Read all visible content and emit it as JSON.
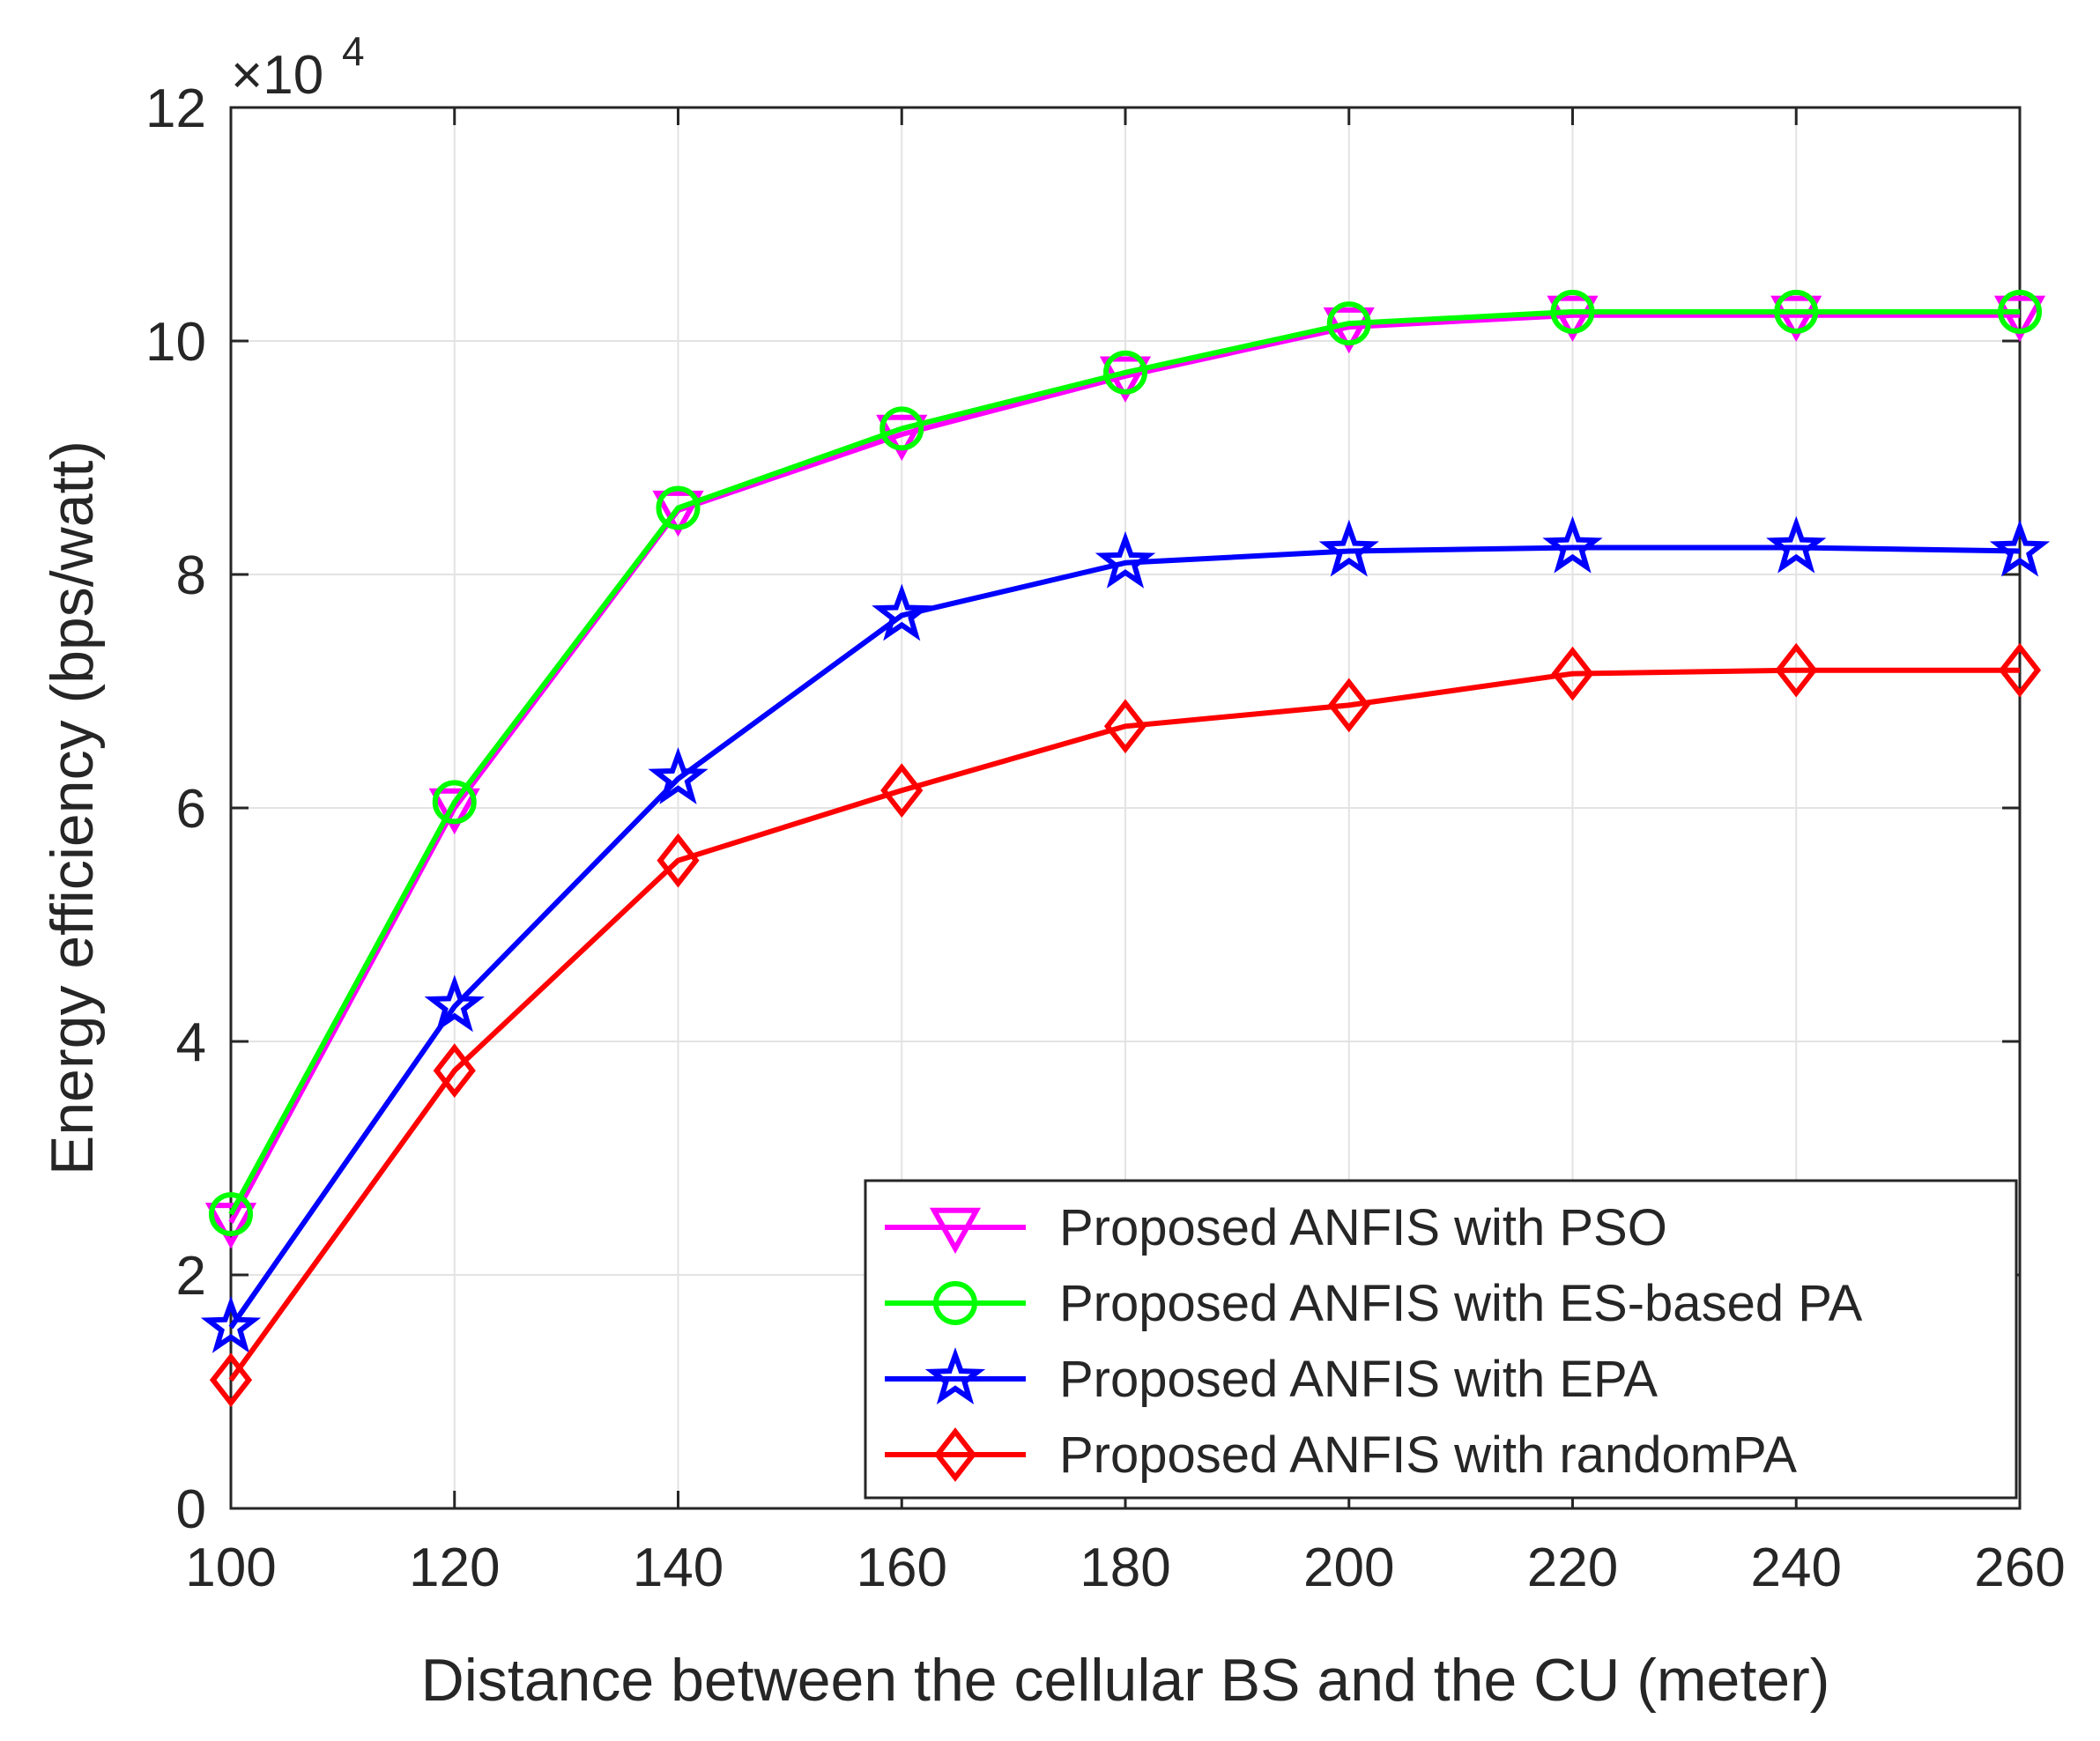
{
  "chart_data": {
    "type": "line",
    "xlabel": "Distance between the cellular BS and the CU (meter)",
    "ylabel": "Energy efficiency (bps/watt)",
    "y_exponent_label": {
      "base": "×10",
      "power": "4"
    },
    "x": [
      100,
      120,
      140,
      160,
      180,
      200,
      220,
      240,
      260
    ],
    "xlim": [
      100,
      260
    ],
    "ylim": [
      0,
      12
    ],
    "x_ticks": [
      100,
      120,
      140,
      160,
      180,
      200,
      220,
      240,
      260
    ],
    "y_ticks": [
      0,
      2,
      4,
      6,
      8,
      10,
      12
    ],
    "y_scale_note": "values in units of 10^4 bps/watt",
    "grid": true,
    "legend_position": "bottom-right",
    "series": [
      {
        "name": "Proposed ANFIS with PSO",
        "color": "#ff00ff",
        "marker": "triangle-down",
        "values": [
          2.45,
          6.0,
          8.55,
          9.2,
          9.7,
          10.12,
          10.22,
          10.22,
          10.22
        ]
      },
      {
        "name": "Proposed ANFIS with ES-based PA",
        "color": "#00ff00",
        "marker": "circle",
        "values": [
          2.52,
          6.05,
          8.57,
          9.25,
          9.73,
          10.15,
          10.25,
          10.25,
          10.25
        ]
      },
      {
        "name": "Proposed ANFIS with EPA",
        "color": "#0000ff",
        "marker": "star",
        "values": [
          1.55,
          4.3,
          6.25,
          7.65,
          8.1,
          8.2,
          8.23,
          8.23,
          8.2
        ]
      },
      {
        "name": "Proposed ANFIS with randomPA",
        "color": "#ff0000",
        "marker": "diamond",
        "values": [
          1.1,
          3.75,
          5.55,
          6.15,
          6.7,
          6.88,
          7.15,
          7.18,
          7.18
        ]
      }
    ]
  }
}
